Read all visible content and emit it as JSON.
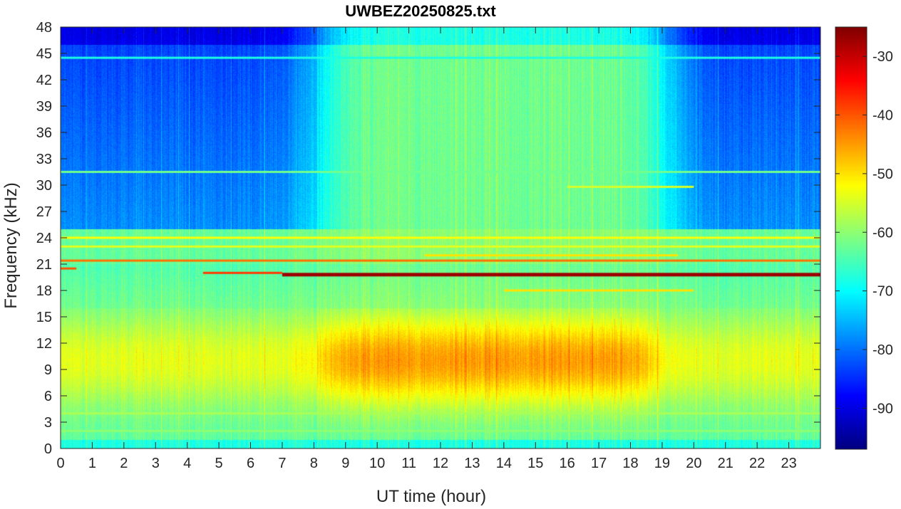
{
  "chart_data": {
    "type": "heatmap",
    "title": "UWBEZ20250825.txt",
    "xlabel": "UT time (hour)",
    "ylabel": "Frequency (kHz)",
    "xlim": [
      0,
      24
    ],
    "ylim": [
      0,
      48
    ],
    "x_ticks": [
      0,
      1,
      2,
      3,
      4,
      5,
      6,
      7,
      8,
      9,
      10,
      11,
      12,
      13,
      14,
      15,
      16,
      17,
      18,
      19,
      20,
      21,
      22,
      23
    ],
    "y_ticks": [
      0,
      3,
      6,
      9,
      12,
      15,
      18,
      21,
      24,
      27,
      30,
      33,
      36,
      39,
      42,
      45,
      48
    ],
    "colorbar": {
      "colormap": "jet",
      "range": [
        -97,
        -25
      ],
      "ticks": [
        -30,
        -40,
        -50,
        -60,
        -70,
        -80,
        -90
      ]
    },
    "features": {
      "persistent_lines": [
        {
          "freq_khz": 19.8,
          "start_hour": 7.0,
          "end_hour": 24.0,
          "level_db": -27
        },
        {
          "freq_khz": 21.4,
          "start_hour": 0.0,
          "end_hour": 24.0,
          "level_db": -42
        },
        {
          "freq_khz": 20.0,
          "start_hour": 4.5,
          "end_hour": 7.0,
          "level_db": -38
        },
        {
          "freq_khz": 20.5,
          "start_hour": 0.0,
          "end_hour": 0.5,
          "level_db": -40
        },
        {
          "freq_khz": 24.0,
          "start_hour": 0.0,
          "end_hour": 24.0,
          "level_db": -52
        },
        {
          "freq_khz": 22.0,
          "start_hour": 11.5,
          "end_hour": 19.5,
          "level_db": -50
        },
        {
          "freq_khz": 23.0,
          "start_hour": 0.0,
          "end_hour": 24.0,
          "level_db": -54
        },
        {
          "freq_khz": 18.0,
          "start_hour": 14.0,
          "end_hour": 20.0,
          "level_db": -50
        },
        {
          "freq_khz": 4.0,
          "start_hour": 0.0,
          "end_hour": 24.0,
          "level_db": -58
        },
        {
          "freq_khz": 2.0,
          "start_hour": 0.0,
          "end_hour": 24.0,
          "level_db": -60
        },
        {
          "freq_khz": 31.5,
          "start_hour": 0.0,
          "end_hour": 24.0,
          "level_db": -62
        },
        {
          "freq_khz": 44.5,
          "start_hour": 0.0,
          "end_hour": 24.0,
          "level_db": -68
        },
        {
          "freq_khz": 29.8,
          "start_hour": 16.0,
          "end_hour": 20.0,
          "level_db": -55
        }
      ],
      "daytime_enhancement": {
        "start_hour": 8.3,
        "end_hour": 18.7,
        "freq_low_khz": 5,
        "freq_high_khz": 15,
        "peak_level_db": -45
      },
      "night_low_region": {
        "freq_low_khz": 25,
        "freq_high_khz": 48,
        "level_db": -82
      }
    }
  }
}
